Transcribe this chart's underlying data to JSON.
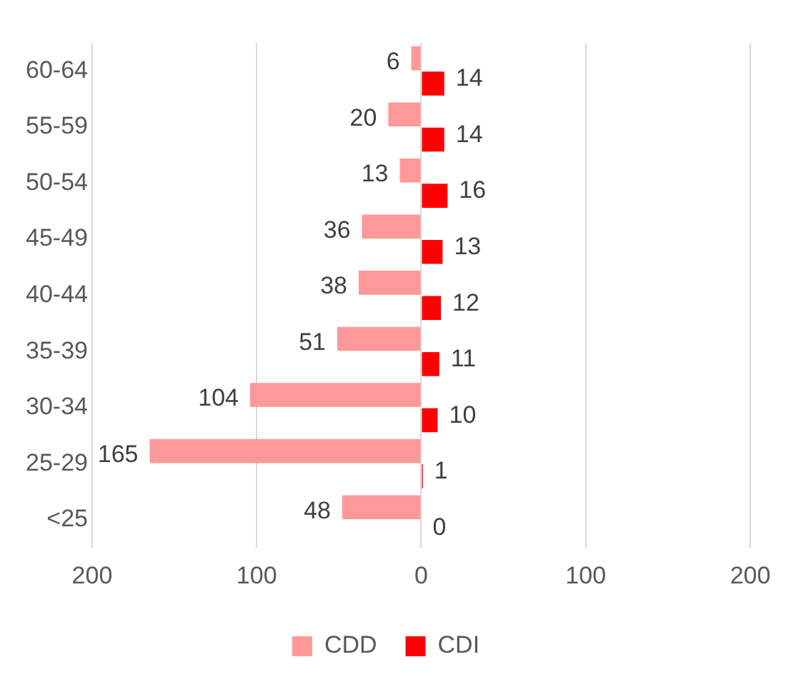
{
  "chart_data": {
    "type": "bar",
    "orientation": "horizontal",
    "categories": [
      "60-64",
      "55-59",
      "50-54",
      "45-49",
      "40-44",
      "35-39",
      "30-34",
      "25-29",
      "<25"
    ],
    "series": [
      {
        "name": "CDD",
        "color": "#ff9999",
        "values": [
          6,
          20,
          13,
          36,
          38,
          51,
          104,
          165,
          48
        ],
        "base": [
          -6,
          -20,
          -13,
          -36,
          -38,
          -51,
          -104,
          -165,
          -48
        ],
        "value_labels": [
          "6",
          "20",
          "13",
          "36",
          "38",
          "51",
          "104",
          "165",
          "48"
        ]
      },
      {
        "name": "CDI",
        "color": "#ff0000",
        "values": [
          14,
          14,
          16,
          13,
          12,
          11,
          10,
          1,
          0
        ],
        "value_labels": [
          "14",
          "14",
          "16",
          "13",
          "12",
          "11",
          "10",
          "1",
          "0"
        ]
      }
    ],
    "xlim": [
      -200,
      200
    ],
    "xticks": [
      {
        "value": -200,
        "label": "200"
      },
      {
        "value": -100,
        "label": "100"
      },
      0,
      100,
      {
        "value": 200,
        "label": "200"
      }
    ],
    "grid": "x",
    "legend": "bottom"
  }
}
